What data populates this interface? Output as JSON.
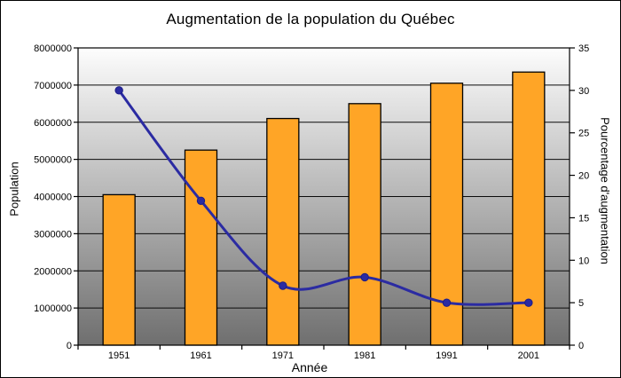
{
  "title": "Augmentation de la population du Québec",
  "chart_data": {
    "type": "bar+line",
    "title": "Augmentation de la population du Québec",
    "categories": [
      "1951",
      "1961",
      "1971",
      "1981",
      "1991",
      "2001"
    ],
    "series": [
      {
        "name": "Population",
        "type": "bar",
        "axis": "left",
        "color": "#FFA526",
        "outline_color": "#000000",
        "values": [
          4050000,
          5250000,
          6100000,
          6500000,
          7050000,
          7350000
        ]
      },
      {
        "name": "Pourcentage d'augmentation",
        "type": "line",
        "axis": "right",
        "color": "#2B2BA2",
        "marker": "dot",
        "smoothed": true,
        "values": [
          30,
          17,
          7,
          8,
          5,
          5
        ]
      }
    ],
    "xlabel": "Année",
    "left_axis": {
      "title": "Population",
      "min": 0,
      "max": 8000000,
      "step": 1000000,
      "tick_labels": [
        "0",
        "1000000",
        "2000000",
        "3000000",
        "4000000",
        "5000000",
        "6000000",
        "7000000",
        "8000000"
      ]
    },
    "right_axis": {
      "title": "Pourcentage d'augmentation",
      "min": 0,
      "max": 35,
      "step": 5,
      "tick_labels": [
        "0",
        "5",
        "10",
        "15",
        "20",
        "25",
        "30",
        "35"
      ]
    },
    "grid": "horizontal lines at each left-axis step",
    "legend": "none",
    "plot_background": {
      "type": "vertical-gradient",
      "top_color": "#FDFDFD",
      "bottom_color": "#6F6F6F"
    }
  }
}
